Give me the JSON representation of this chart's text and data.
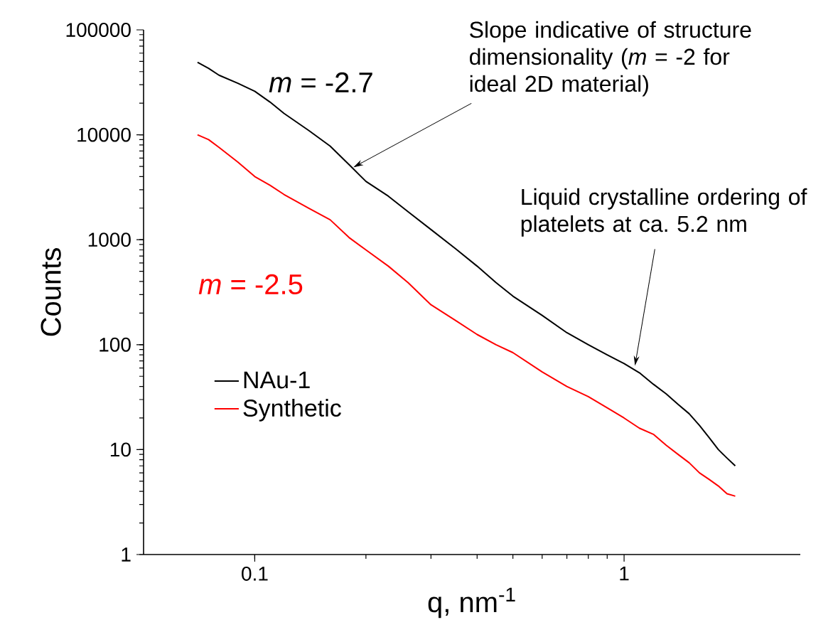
{
  "chart_data": {
    "type": "line",
    "xlabel": "q, nm$^{-1}$",
    "ylabel": "Counts",
    "log": "xy",
    "xlim": [
      0.05,
      3
    ],
    "ylim": [
      1,
      100000
    ],
    "xticks": [
      0.1,
      1
    ],
    "yticks": [
      1,
      10,
      100,
      1000,
      10000,
      100000
    ],
    "legend": "left",
    "grid": false,
    "series": [
      {
        "name": "NAu-1",
        "color": "#000000",
        "x": [
          0.07,
          0.075,
          0.08,
          0.09,
          0.1,
          0.11,
          0.12,
          0.14,
          0.16,
          0.18,
          0.2,
          0.23,
          0.26,
          0.3,
          0.35,
          0.4,
          0.45,
          0.5,
          0.6,
          0.7,
          0.8,
          0.9,
          1.0,
          1.1,
          1.2,
          1.3,
          1.4,
          1.5,
          1.6,
          1.7,
          1.8,
          1.9,
          2.0
        ],
        "values": [
          49000,
          43000,
          37000,
          31000,
          26000,
          20500,
          16000,
          11000,
          7800,
          5200,
          3600,
          2600,
          1850,
          1250,
          820,
          560,
          390,
          290,
          190,
          130,
          100,
          80,
          66,
          54,
          42,
          34,
          27,
          22,
          17,
          13,
          10,
          8.3,
          7
        ]
      },
      {
        "name": "Synthetic",
        "color": "#ff0000",
        "x": [
          0.07,
          0.075,
          0.08,
          0.09,
          0.1,
          0.11,
          0.12,
          0.14,
          0.16,
          0.18,
          0.2,
          0.23,
          0.26,
          0.3,
          0.35,
          0.4,
          0.45,
          0.5,
          0.6,
          0.7,
          0.8,
          0.9,
          1.0,
          1.1,
          1.2,
          1.3,
          1.4,
          1.5,
          1.6,
          1.7,
          1.8,
          1.9,
          2.0
        ],
        "values": [
          10000,
          9000,
          7600,
          5500,
          4000,
          3300,
          2700,
          2000,
          1550,
          1050,
          800,
          560,
          390,
          240,
          170,
          125,
          100,
          84,
          55,
          40,
          32,
          25,
          20,
          16,
          14,
          11,
          9,
          7.5,
          6,
          5.2,
          4.5,
          3.8,
          3.6
        ]
      }
    ],
    "annotations": [
      "*m* = -2.7",
      "*m* = -2.5",
      {
        "text": "Slope indicative of structure dimensionality (*m* = -2 for ideal 2D material)",
        "x": 0.185,
        "y": 4900
      },
      {
        "text": "Liquid crystalline ordering of platelets at ca. 5.2 nm",
        "x": 1.07,
        "y": 63
      }
    ]
  }
}
